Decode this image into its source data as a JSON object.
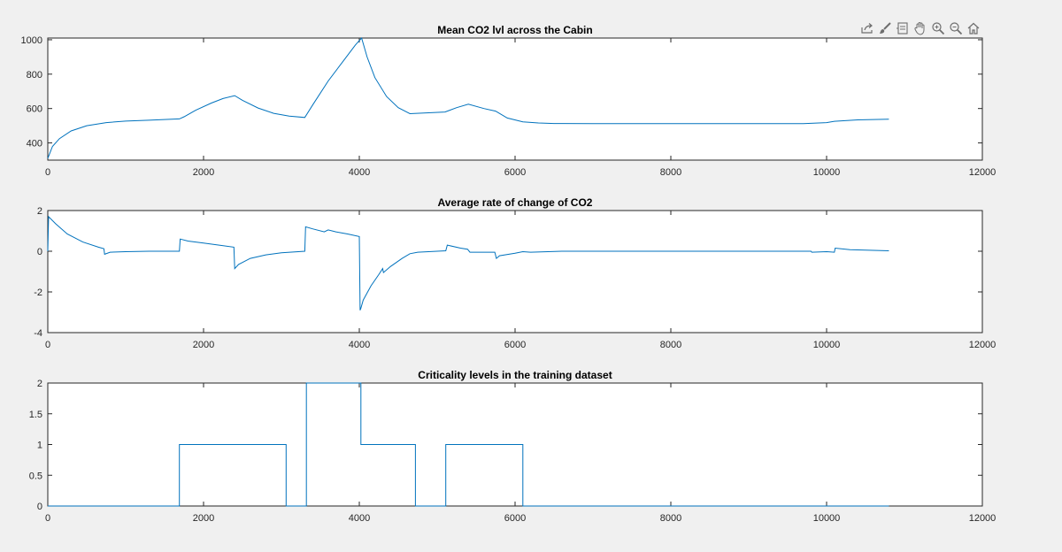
{
  "toolbar": {
    "buttons": [
      {
        "name": "export-icon"
      },
      {
        "name": "brush-icon"
      },
      {
        "name": "datatip-icon"
      },
      {
        "name": "pan-icon"
      },
      {
        "name": "zoom-in-icon"
      },
      {
        "name": "zoom-out-icon"
      },
      {
        "name": "home-icon"
      }
    ]
  },
  "colors": {
    "line": "#0072bd",
    "axes_bg": "#ffffff",
    "figure_bg": "#f0f0f0"
  },
  "chart_data": [
    {
      "type": "line",
      "title": "Mean CO2 lvl across the Cabin",
      "xlim": [
        0,
        12000
      ],
      "ylim": [
        300,
        1010
      ],
      "xticks": [
        0,
        2000,
        4000,
        6000,
        8000,
        10000,
        12000
      ],
      "yticks": [
        400,
        600,
        800,
        1000
      ],
      "grid": false,
      "series": [
        {
          "x": [
            0,
            60,
            150,
            300,
            500,
            750,
            1000,
            1300,
            1690,
            1750,
            1900,
            2100,
            2250,
            2400,
            2500,
            2700,
            2900,
            3100,
            3300,
            3400,
            3600,
            3800,
            3950,
            4030,
            4100,
            4200,
            4350,
            4500,
            4650,
            4800,
            5100,
            5250,
            5400,
            5600,
            5750,
            5900,
            6100,
            6300,
            6500,
            7000,
            8000,
            9000,
            9700,
            10000,
            10100,
            10400,
            10800
          ],
          "y": [
            310,
            380,
            425,
            470,
            500,
            518,
            527,
            532,
            540,
            552,
            590,
            632,
            658,
            675,
            648,
            603,
            572,
            556,
            548,
            620,
            760,
            880,
            970,
            1010,
            900,
            780,
            670,
            605,
            570,
            573,
            580,
            605,
            625,
            600,
            585,
            545,
            523,
            516,
            513,
            512,
            512,
            512,
            512,
            518,
            526,
            534,
            538
          ]
        }
      ]
    },
    {
      "type": "line",
      "title": "Average rate of change of CO2",
      "xlim": [
        0,
        12000
      ],
      "ylim": [
        -4,
        2
      ],
      "xticks": [
        0,
        2000,
        4000,
        6000,
        8000,
        10000,
        12000
      ],
      "yticks": [
        -4,
        -2,
        0,
        2
      ],
      "grid": false,
      "series": [
        {
          "x": [
            0,
            10,
            100,
            250,
            450,
            650,
            720,
            730,
            800,
            1000,
            1300,
            1690,
            1700,
            1800,
            2000,
            2200,
            2390,
            2400,
            2450,
            2600,
            2800,
            3000,
            3300,
            3310,
            3400,
            3550,
            3600,
            3700,
            3850,
            4000,
            4010,
            4020,
            4050,
            4150,
            4250,
            4300,
            4310,
            4400,
            4550,
            4650,
            4750,
            5000,
            5110,
            5130,
            5300,
            5390,
            5420,
            5740,
            5760,
            5800,
            6000,
            6100,
            6200,
            6600,
            8000,
            9000,
            9800,
            9810,
            10000,
            10100,
            10110,
            10300,
            10800
          ],
          "y": [
            0,
            1.7,
            1.35,
            0.85,
            0.45,
            0.2,
            0.12,
            -0.15,
            -0.05,
            -0.02,
            0,
            0,
            0.6,
            0.5,
            0.4,
            0.3,
            0.2,
            -0.85,
            -0.65,
            -0.35,
            -0.18,
            -0.08,
            0,
            1.2,
            1.1,
            0.95,
            1.05,
            0.95,
            0.85,
            0.72,
            -2.9,
            -2.8,
            -2.4,
            -1.7,
            -1.15,
            -0.85,
            -1.05,
            -0.75,
            -0.35,
            -0.12,
            -0.05,
            0,
            0.02,
            0.3,
            0.15,
            0.1,
            -0.05,
            -0.05,
            -0.35,
            -0.22,
            -0.1,
            -0.02,
            -0.05,
            0,
            0,
            0,
            0,
            -0.05,
            -0.02,
            -0.05,
            0.15,
            0.08,
            0.02
          ]
        }
      ]
    },
    {
      "type": "line",
      "title": "Criticality levels in the training dataset",
      "xlim": [
        0,
        12000
      ],
      "ylim": [
        0,
        2
      ],
      "xticks": [
        0,
        2000,
        4000,
        6000,
        8000,
        10000,
        12000
      ],
      "yticks": [
        0,
        0.5,
        1,
        1.5,
        2
      ],
      "grid": false,
      "series": [
        {
          "x": [
            0,
            1690,
            1690,
            3060,
            3060,
            3320,
            3320,
            4020,
            4020,
            4720,
            4720,
            5110,
            5110,
            6100,
            6100,
            10800
          ],
          "y": [
            0,
            0,
            1,
            1,
            0,
            0,
            2,
            2,
            1,
            1,
            0,
            0,
            1,
            1,
            0,
            0
          ]
        }
      ]
    }
  ]
}
